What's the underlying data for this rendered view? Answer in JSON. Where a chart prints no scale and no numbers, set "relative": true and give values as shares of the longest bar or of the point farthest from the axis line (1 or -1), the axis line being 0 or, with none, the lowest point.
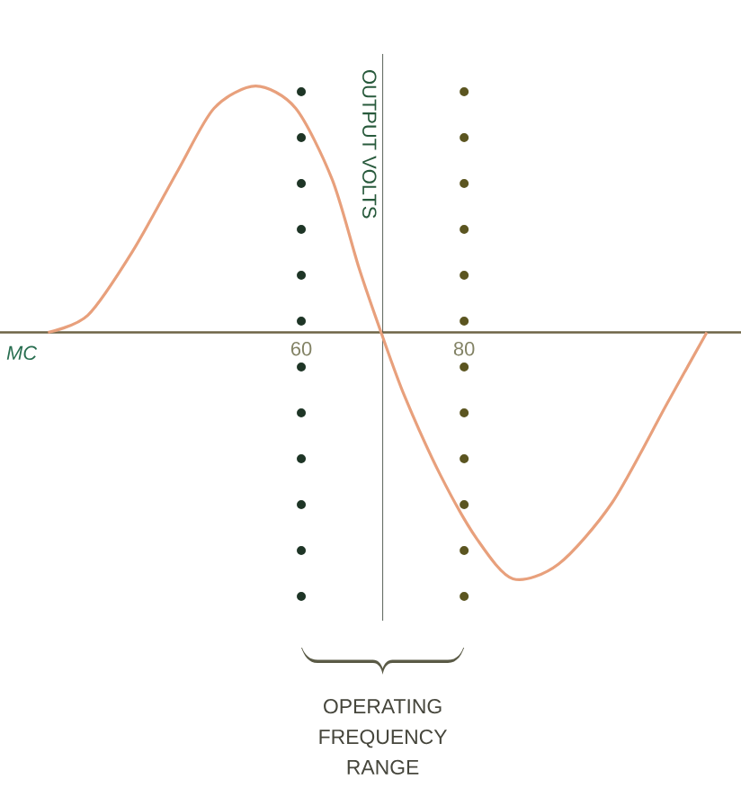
{
  "chart_data": {
    "type": "line",
    "xlabel": "MC",
    "ylabel": "OUTPUT VOLTS",
    "relative": true,
    "x": [
      28.9,
      33.8,
      39.3,
      44.9,
      49.3,
      54.4,
      59.3,
      63.8,
      67.1,
      69.8,
      72.7,
      77.1,
      81.6,
      86,
      91.6,
      98.2,
      104.9,
      109.8
    ],
    "xlim": [
      23,
      114
    ],
    "xticks": [
      60,
      80
    ],
    "series": [
      {
        "color": "#e8a07c",
        "values": [
          0,
          0.07,
          0.33,
          0.66,
          0.91,
          1,
          0.91,
          0.62,
          0.26,
          0,
          -0.26,
          -0.58,
          -0.84,
          -1,
          -0.94,
          -0.69,
          -0.29,
          0
        ]
      }
    ],
    "ref_lines": [
      {
        "axis": "x",
        "value": 60,
        "color": "#1e3526",
        "line_style": "dotted"
      },
      {
        "axis": "x",
        "value": 80,
        "color": "#5b5520",
        "line_style": "dotted"
      },
      {
        "axis": "x",
        "value": 70,
        "color": "#2e3a2e",
        "line_style": "solid"
      }
    ],
    "annotations": [
      "OPERATING FREQUENCY RANGE"
    ]
  }
}
